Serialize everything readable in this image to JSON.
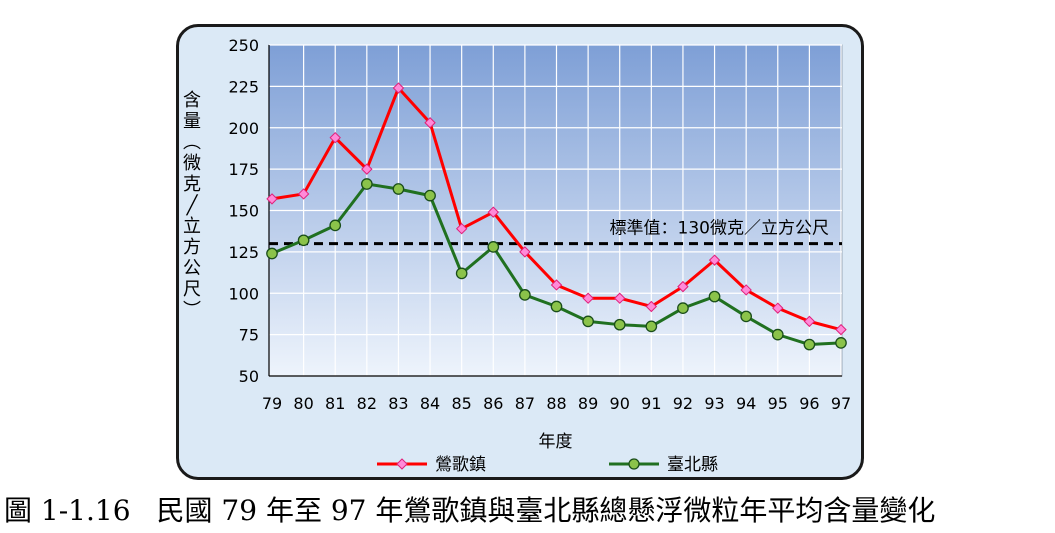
{
  "caption": {
    "number": "圖 1-1.16",
    "text": "民國 79 年至 97 年鶯歌鎮與臺北縣總懸浮微粒年平均含量變化"
  },
  "chart_data": {
    "type": "line",
    "xlabel": "年度",
    "ylabel": "含量（微克／立方公尺）",
    "ylim": [
      50,
      250
    ],
    "yticks": [
      "50",
      "75",
      "100",
      "125",
      "150",
      "175",
      "200",
      "225",
      "250"
    ],
    "grid": true,
    "legend": "bottom",
    "categories": [
      "79",
      "80",
      "81",
      "82",
      "83",
      "84",
      "85",
      "86",
      "87",
      "88",
      "89",
      "90",
      "91",
      "92",
      "93",
      "94",
      "95",
      "96",
      "97"
    ],
    "series": [
      {
        "name": "鶯歌鎮",
        "color": "#ff0000",
        "marker": "diamond",
        "marker_color": "#ff8ad8",
        "values": [
          157,
          160,
          194,
          175,
          224,
          203,
          139,
          149,
          125,
          105,
          97,
          97,
          92,
          104,
          120,
          102,
          91,
          83,
          78
        ]
      },
      {
        "name": "臺北縣",
        "color": "#207020",
        "marker": "circle",
        "marker_color": "#8bc34a",
        "values": [
          124,
          132,
          141,
          166,
          163,
          159,
          112,
          128,
          99,
          92,
          83,
          81,
          80,
          91,
          98,
          86,
          75,
          69,
          70
        ]
      }
    ],
    "reference_line": {
      "value": 130,
      "label": "標準值：130微克／立方公尺",
      "style": "dashed",
      "color": "#000000"
    }
  }
}
